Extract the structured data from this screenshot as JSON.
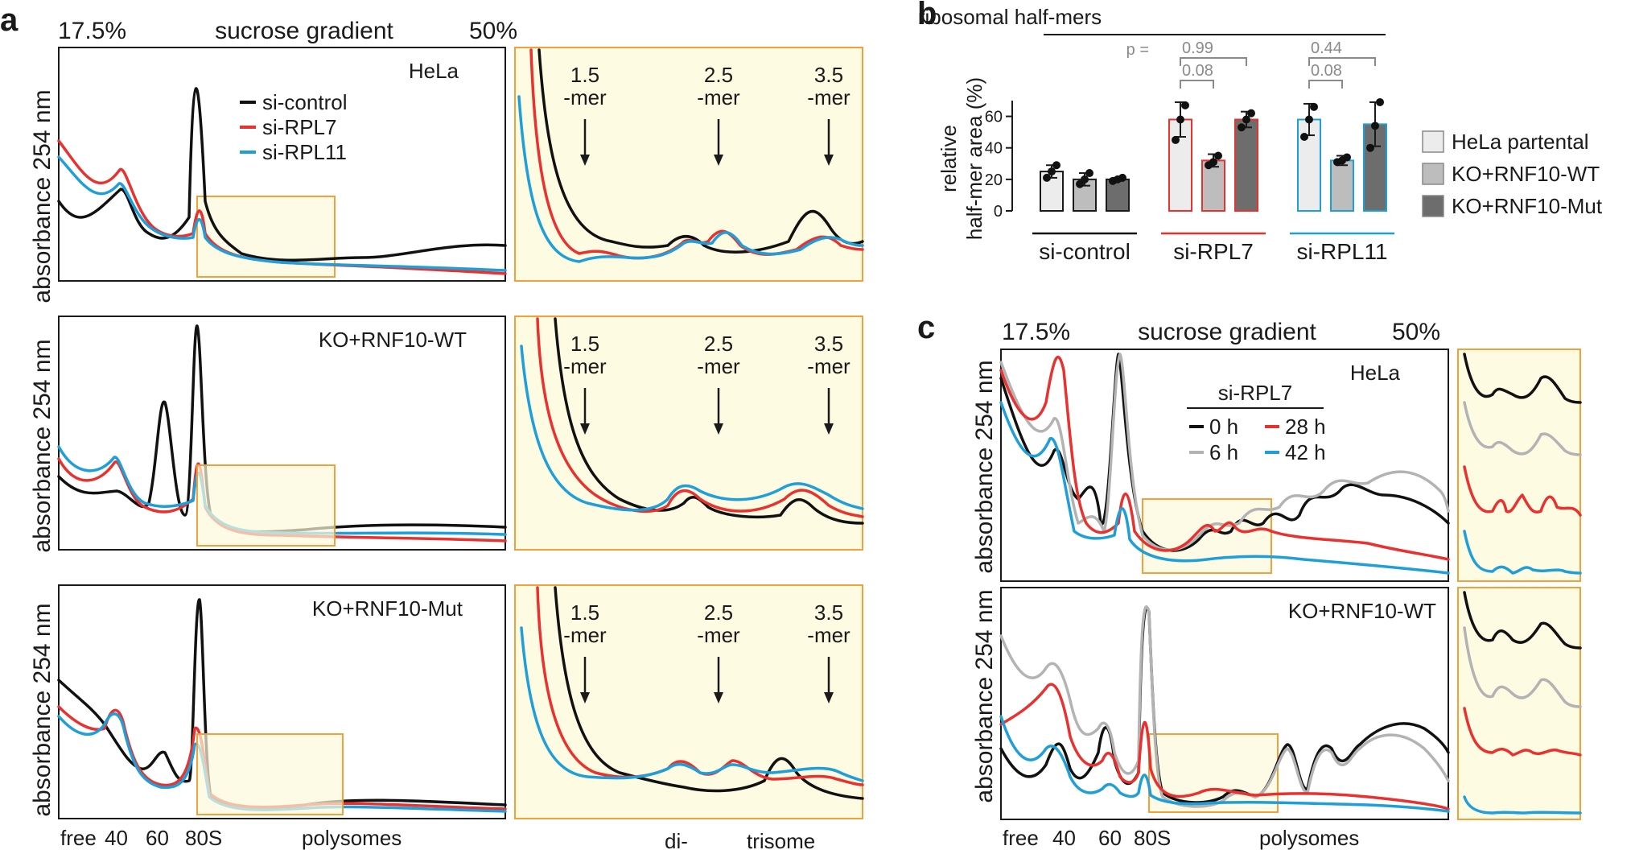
{
  "colors": {
    "si_control": "#111111",
    "si_RPL7": "#e8322f",
    "si_RPL11": "#1f9fd8",
    "zoom_border": "#f2a13a",
    "zoom_fill": "#fdfbe2",
    "gray_light": "#b3b3b3",
    "pval_gray": "#8a8a8a"
  },
  "panel_a": {
    "letter": "a",
    "gradient_start": "17.5%",
    "gradient_label": "sucrose gradient",
    "gradient_end": "50%",
    "ylabel": "absorbance 254 nm",
    "legend": [
      "si-control",
      "si-RPL7",
      "si-RPL11"
    ],
    "rows": [
      {
        "label": "HeLa"
      },
      {
        "label": "KO+RNF10-WT"
      },
      {
        "label": "KO+RNF10-Mut"
      }
    ],
    "zoom_annotations": [
      {
        "line1": "1.5",
        "line2": "-mer"
      },
      {
        "line1": "2.5",
        "line2": "-mer"
      },
      {
        "line1": "3.5",
        "line2": "-mer"
      }
    ],
    "xlabels": [
      "free",
      "40",
      "60",
      "80S",
      "polysomes"
    ],
    "zoom_xlabels": [
      "di-",
      "trisome"
    ]
  },
  "panel_b": {
    "letter": "b",
    "title": "ribosomal half-mers",
    "ylabel_line1": "relative",
    "ylabel_line2": "half-mer area (%)",
    "pval_prefix": "p =",
    "chart_data": {
      "type": "bar",
      "categories": [
        "si-control",
        "si-RPL7",
        "si-RPL11"
      ],
      "series": [
        {
          "name": "HeLa partental",
          "values": [
            25,
            58,
            58
          ],
          "errors": [
            4,
            11,
            10
          ],
          "points": [
            [
              21,
              25,
              29
            ],
            [
              45,
              58,
              67
            ],
            [
              47,
              58,
              66
            ]
          ]
        },
        {
          "name": "KO+RNF10-WT",
          "values": [
            20,
            32,
            32
          ],
          "errors": [
            4,
            4,
            3
          ],
          "points": [
            [
              17,
              20,
              24
            ],
            [
              29,
              31,
              35
            ],
            [
              31,
              32,
              34
            ]
          ]
        },
        {
          "name": "KO+RNF10-Mut",
          "values": [
            20,
            58,
            55
          ],
          "errors": [
            1,
            5,
            14
          ],
          "points": [
            [
              19,
              20,
              21
            ],
            [
              53,
              58,
              62
            ],
            [
              40,
              54,
              69
            ]
          ]
        }
      ],
      "ylim": [
        0,
        70
      ],
      "yticks": [
        0,
        20,
        40,
        60
      ],
      "pvalues": {
        "si-RPL7": {
          "parental_vs_wt": "0.08",
          "parental_vs_mut": "0.99"
        },
        "si-RPL11": {
          "parental_vs_wt": "0.08",
          "parental_vs_mut": "0.44"
        }
      },
      "legend_placement": "right"
    }
  },
  "panel_c": {
    "letter": "c",
    "gradient_start": "17.5%",
    "gradient_label": "sucrose gradient",
    "gradient_end": "50%",
    "ylabel": "absorbance 254 nm",
    "legend_title": "si-RPL7",
    "legend": [
      "0 h",
      "6 h",
      "28 h",
      "42 h"
    ],
    "rows": [
      {
        "label": "HeLa"
      },
      {
        "label": "KO+RNF10-WT"
      }
    ],
    "xlabels": [
      "free",
      "40",
      "60",
      "80S",
      "polysomes"
    ]
  }
}
